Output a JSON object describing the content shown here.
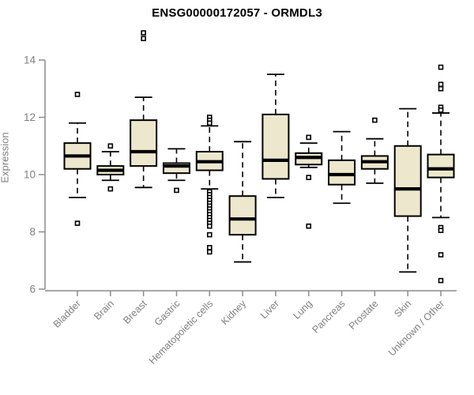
{
  "chart_data": {
    "type": "boxplot",
    "title": "ENSG00000172057 - ORMDL3",
    "ylabel": "Expression",
    "xlabel": "",
    "yticks": [
      6,
      8,
      10,
      12,
      14
    ],
    "ylim": [
      6,
      15.1
    ],
    "grid": false,
    "legend": "none",
    "categories": [
      "Bladder",
      "Brain",
      "Breast",
      "Gastric",
      "Hematopoietic cells",
      "Kidney",
      "Liver",
      "Lung",
      "Pancreas",
      "Prostate",
      "Skin",
      "Unknown / Other"
    ],
    "boxes": [
      {
        "category": "Bladder",
        "whisker_low": 9.2,
        "q1": 10.2,
        "median": 10.65,
        "q3": 11.1,
        "whisker_high": 11.8,
        "outliers": [
          12.8,
          8.3
        ]
      },
      {
        "category": "Brain",
        "whisker_low": 9.8,
        "q1": 10.0,
        "median": 10.15,
        "q3": 10.3,
        "whisker_high": 10.8,
        "outliers": [
          11.0,
          9.5
        ]
      },
      {
        "category": "Breast",
        "whisker_low": 9.55,
        "q1": 10.3,
        "median": 10.8,
        "q3": 11.9,
        "whisker_high": 12.7,
        "outliers": [
          14.95,
          14.75
        ]
      },
      {
        "category": "Gastric",
        "whisker_low": 9.8,
        "q1": 10.05,
        "median": 10.3,
        "q3": 10.4,
        "whisker_high": 10.9,
        "outliers": [
          9.45
        ]
      },
      {
        "category": "Hematopoietic cells",
        "whisker_low": 9.5,
        "q1": 10.15,
        "median": 10.45,
        "q3": 10.8,
        "whisker_high": 11.7,
        "outliers": [
          12.0,
          11.9,
          11.8,
          9.4,
          9.3,
          9.2,
          9.1,
          9.0,
          8.9,
          8.8,
          8.7,
          8.6,
          8.5,
          8.4,
          8.3,
          8.2,
          7.9,
          7.45,
          7.3
        ]
      },
      {
        "category": "Kidney",
        "whisker_low": 6.95,
        "q1": 7.9,
        "median": 8.45,
        "q3": 9.25,
        "whisker_high": 11.15,
        "outliers": []
      },
      {
        "category": "Liver",
        "whisker_low": 9.2,
        "q1": 9.85,
        "median": 10.5,
        "q3": 12.1,
        "whisker_high": 13.5,
        "outliers": []
      },
      {
        "category": "Lung",
        "whisker_low": 10.25,
        "q1": 10.35,
        "median": 10.6,
        "q3": 10.75,
        "whisker_high": 11.1,
        "outliers": [
          11.3,
          9.9,
          8.2
        ]
      },
      {
        "category": "Pancreas",
        "whisker_low": 9.0,
        "q1": 9.65,
        "median": 10.0,
        "q3": 10.5,
        "whisker_high": 11.5,
        "outliers": []
      },
      {
        "category": "Prostate",
        "whisker_low": 9.7,
        "q1": 10.2,
        "median": 10.45,
        "q3": 10.65,
        "whisker_high": 11.25,
        "outliers": [
          11.9
        ]
      },
      {
        "category": "Skin",
        "whisker_low": 6.6,
        "q1": 8.55,
        "median": 9.5,
        "q3": 11.0,
        "whisker_high": 12.3,
        "outliers": []
      },
      {
        "category": "Unknown / Other",
        "whisker_low": 8.5,
        "q1": 9.9,
        "median": 10.2,
        "q3": 10.7,
        "whisker_high": 12.15,
        "outliers": [
          13.75,
          13.15,
          13.0,
          12.35,
          12.25,
          8.15,
          8.05,
          7.2,
          6.3
        ]
      }
    ],
    "colors": {
      "box_fill": "#EDE8CD",
      "box_border": "#000000",
      "median": "#000000",
      "whisker": "#000000",
      "outlier_fill": "#ffffff",
      "axis": "#8c8c8c",
      "tick_label": "#7f7f7f",
      "title": "#000000",
      "background": "#ffffff"
    }
  }
}
